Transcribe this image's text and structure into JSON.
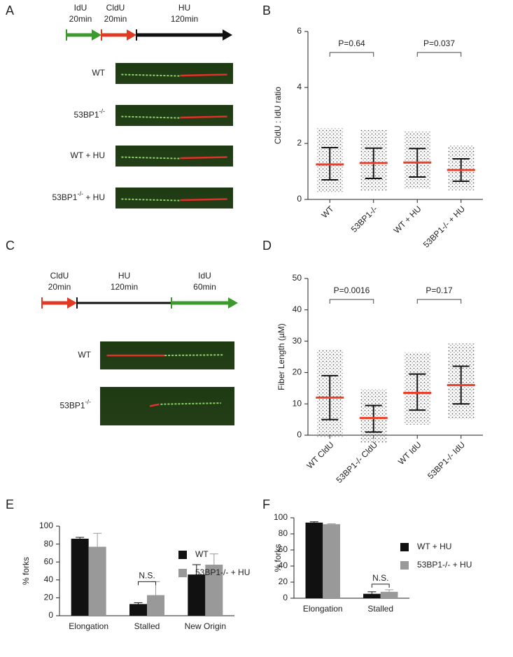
{
  "panel_a": {
    "label": "A",
    "steps": [
      {
        "name": "IdU",
        "time": "20min"
      },
      {
        "name": "CldU",
        "time": "20min"
      },
      {
        "name": "HU",
        "time": "120min"
      }
    ],
    "rows": [
      {
        "text": "WT"
      },
      {
        "text": "53BP1",
        "sup": "-/-"
      },
      {
        "text": "WT + HU"
      },
      {
        "text": "53BP1",
        "sup": "-/-",
        "after": " + HU"
      }
    ]
  },
  "panel_c": {
    "label": "C",
    "steps": [
      {
        "name": "CldU",
        "time": "20min"
      },
      {
        "name": "HU",
        "time": "120min"
      },
      {
        "name": "IdU",
        "time": "60min"
      }
    ],
    "rows": [
      {
        "text": "WT"
      },
      {
        "text": "53BP1",
        "sup": "-/-"
      }
    ]
  },
  "chart_data": [
    {
      "type": "dot",
      "label": "B",
      "ylabel": "CldU : IdU ratio",
      "categories": [
        "WT",
        "53BP1-/-",
        "WT + HU",
        "53BP1-/- + HU"
      ],
      "values": [
        1.25,
        1.3,
        1.32,
        1.05
      ],
      "error_low": [
        0.7,
        0.75,
        0.8,
        0.65
      ],
      "error_high": [
        1.85,
        1.83,
        1.82,
        1.45
      ],
      "color": "#e8402a",
      "ylim": [
        0,
        6
      ],
      "yticks": [
        0,
        2,
        4,
        6
      ],
      "annotations": [
        "P=0.64",
        "P=0.037"
      ]
    },
    {
      "type": "dot",
      "label": "D",
      "ylabel": "Fiber Length (µM)",
      "categories": [
        "WT CldU",
        "53BP1-/- CldU",
        "WT IdU",
        "53BP1-/- IdU"
      ],
      "values": [
        12,
        5.5,
        13.5,
        16
      ],
      "error_low": [
        5,
        1,
        8,
        10
      ],
      "error_high": [
        19,
        9.5,
        19.5,
        22
      ],
      "color": "#e8402a",
      "ylim": [
        0,
        50
      ],
      "yticks": [
        0,
        10,
        20,
        30,
        40,
        50
      ],
      "annotations": [
        "P=0.0016",
        "P=0.17"
      ]
    },
    {
      "type": "bar",
      "label": "E",
      "ylabel": "% forks",
      "categories": [
        "Elongation",
        "Stalled",
        "New Origin"
      ],
      "series": [
        {
          "name": "WT",
          "color": "#111111",
          "values": [
            86,
            13,
            46
          ],
          "errors": [
            1.5,
            1.5,
            11
          ]
        },
        {
          "name": "53BP1-/- + HU",
          "color": "#999999",
          "values": [
            77,
            23,
            57
          ],
          "errors": [
            15,
            15,
            12
          ]
        }
      ],
      "ylim": [
        0,
        100
      ],
      "yticks": [
        0,
        20,
        40,
        60,
        80,
        100
      ],
      "annotations": [
        "N.S."
      ]
    },
    {
      "type": "bar",
      "label": "F",
      "ylabel": "% forks",
      "categories": [
        "Elongation",
        "Stalled"
      ],
      "series": [
        {
          "name": "WT + HU",
          "color": "#111111",
          "values": [
            94,
            5.5
          ],
          "errors": [
            1,
            2.5
          ]
        },
        {
          "name": "53BP1-/- + HU",
          "color": "#999999",
          "values": [
            92,
            8
          ],
          "errors": [
            0.5,
            2.5
          ]
        }
      ],
      "ylim": [
        0,
        100
      ],
      "yticks": [
        0,
        20,
        40,
        60,
        80,
        100
      ],
      "annotations": [
        "N.S."
      ]
    }
  ]
}
